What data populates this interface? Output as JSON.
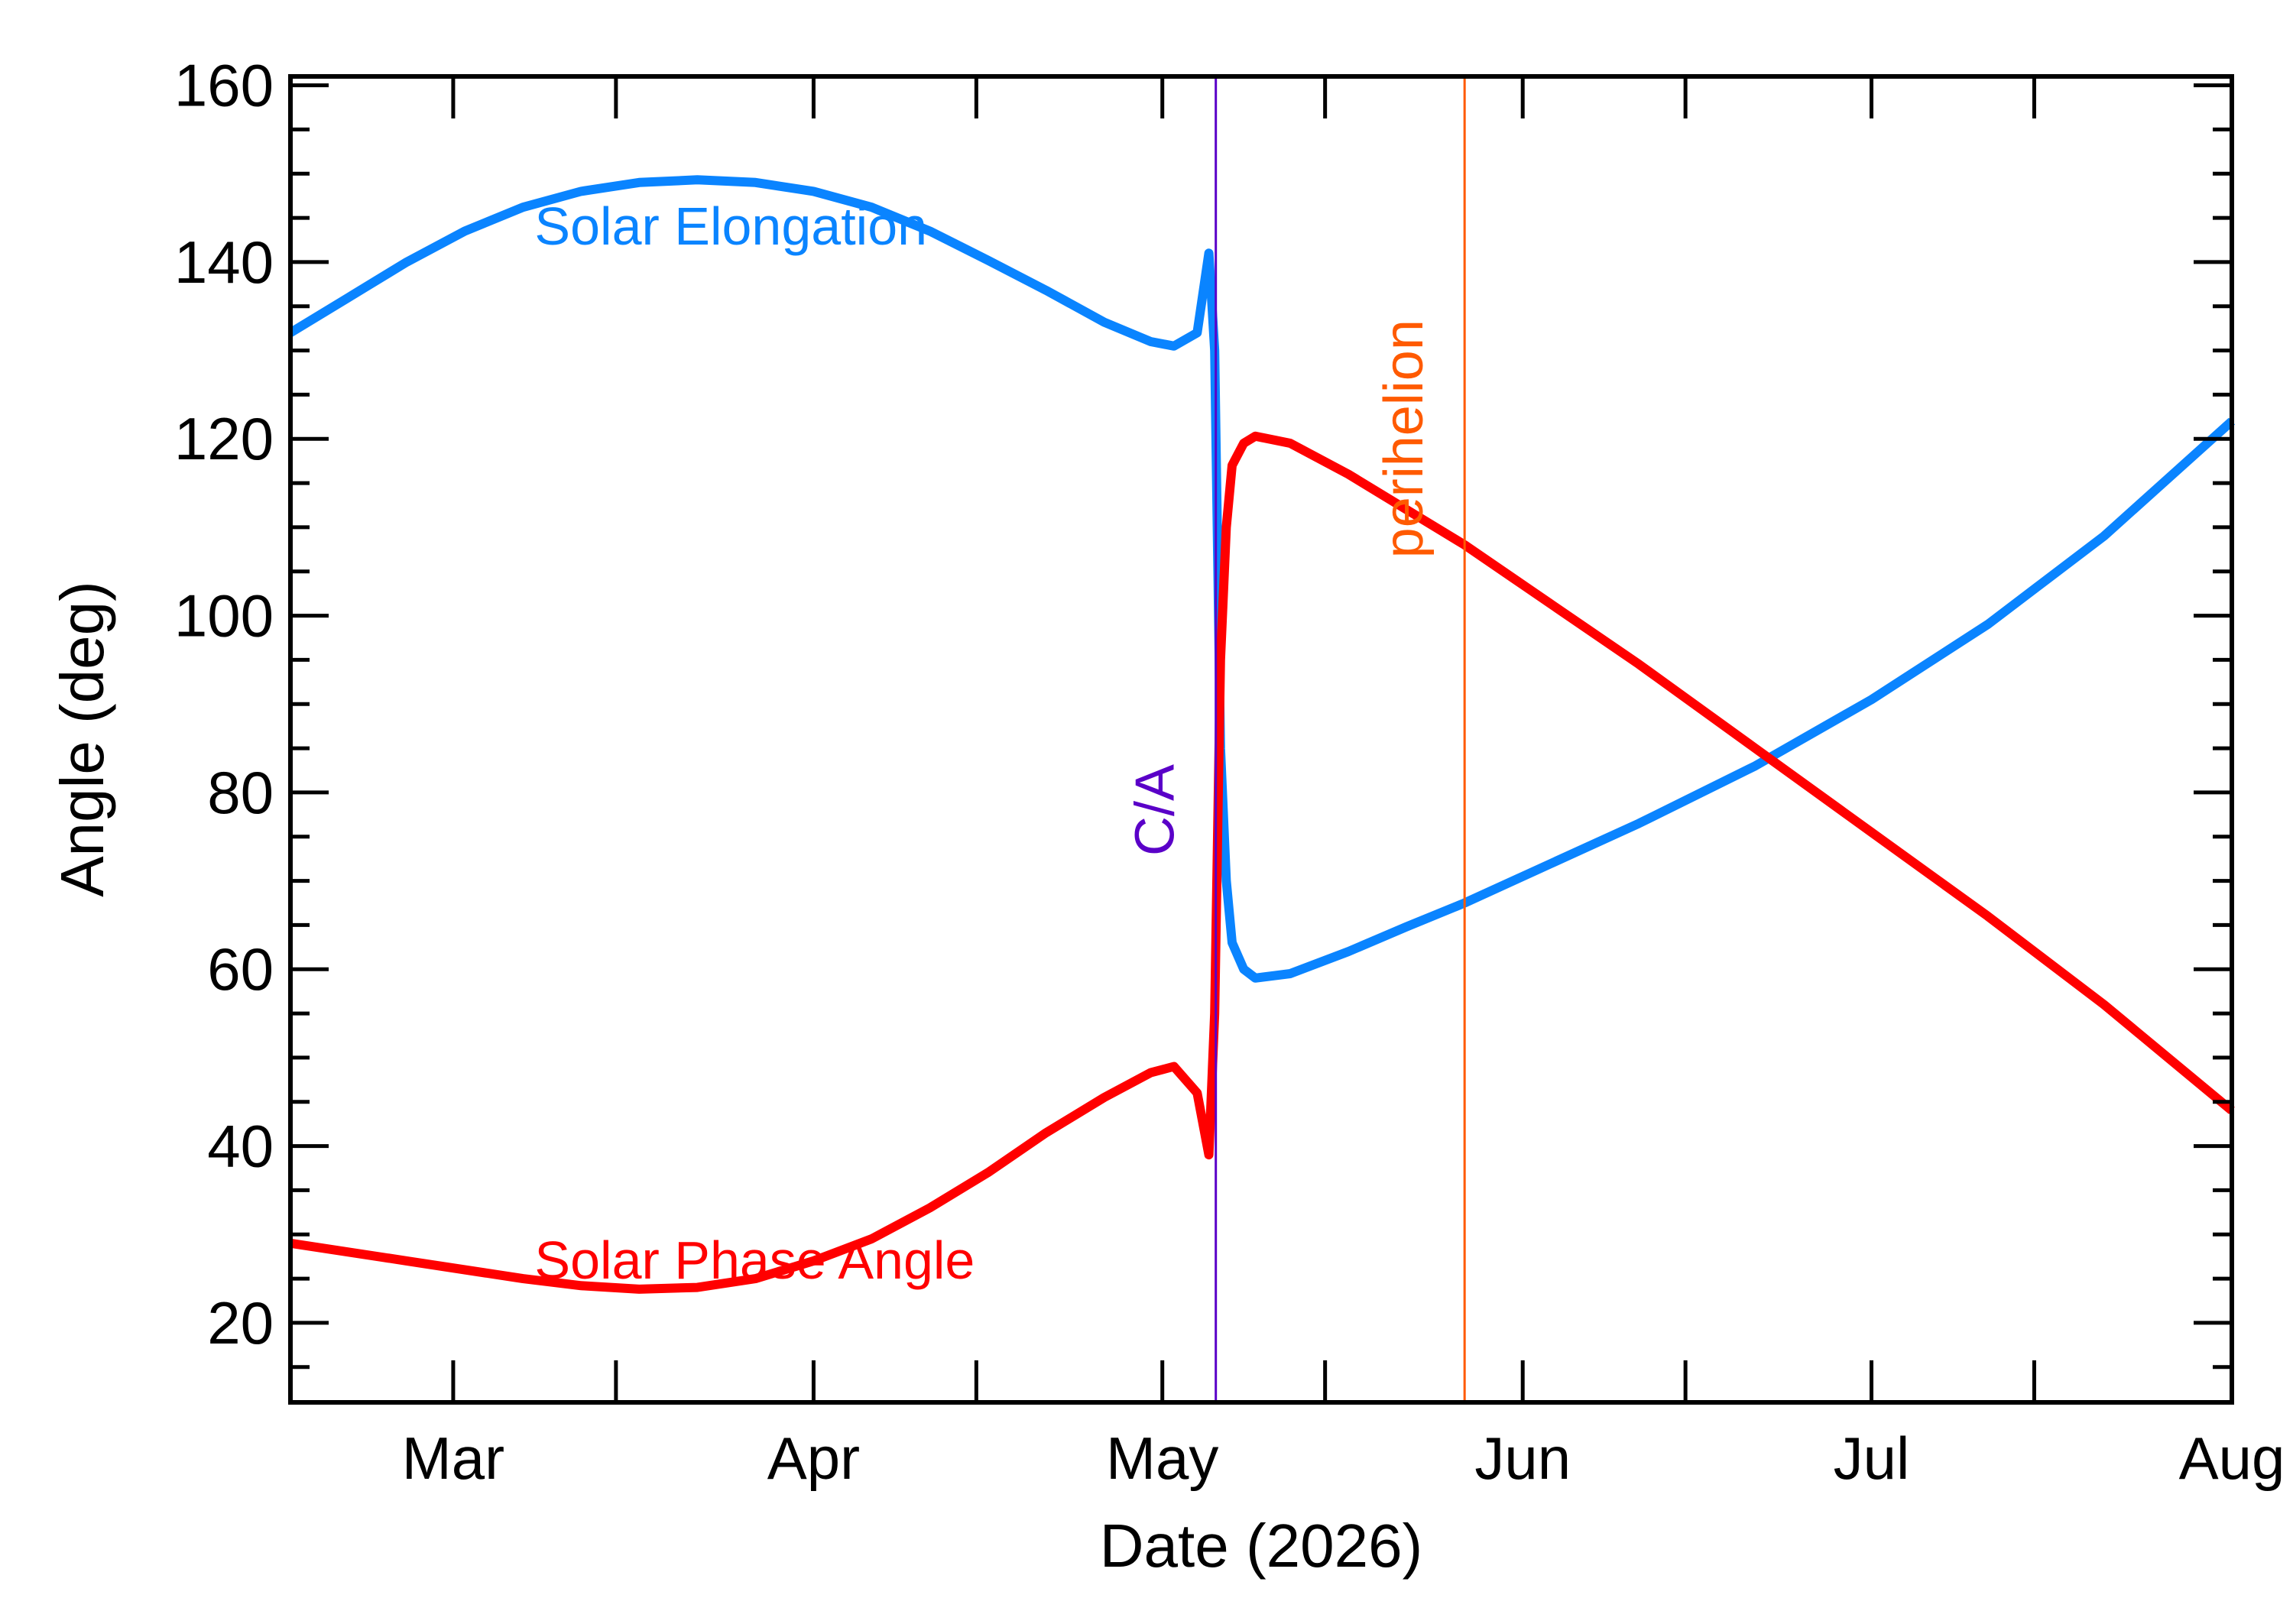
{
  "chart_data": {
    "type": "line",
    "xlabel": "Date (2026)",
    "ylabel": "Angle (deg)",
    "xlim": [
      "2026-02-15",
      "2026-08-01"
    ],
    "ylim": [
      11,
      161
    ],
    "x_tick_labels": [
      {
        "date": "2026-03-01",
        "label": "Mar"
      },
      {
        "date": "2026-04-01",
        "label": "Apr"
      },
      {
        "date": "2026-05-01",
        "label": "May"
      },
      {
        "date": "2026-06-01",
        "label": "Jun"
      },
      {
        "date": "2026-07-01",
        "label": "Jul"
      },
      {
        "date": "2026-08-01",
        "label": "Aug"
      }
    ],
    "y_ticks": [
      20,
      40,
      60,
      80,
      100,
      120,
      140,
      160
    ],
    "series": [
      {
        "name": "Solar Elongation",
        "color": "#0a84ff",
        "points": [
          {
            "x": "2026-02-15",
            "y": 132
          },
          {
            "x": "2026-02-20",
            "y": 136
          },
          {
            "x": "2026-02-25",
            "y": 140
          },
          {
            "x": "2026-03-02",
            "y": 143.5
          },
          {
            "x": "2026-03-07",
            "y": 146.2
          },
          {
            "x": "2026-03-12",
            "y": 148
          },
          {
            "x": "2026-03-17",
            "y": 149
          },
          {
            "x": "2026-03-22",
            "y": 149.3
          },
          {
            "x": "2026-03-27",
            "y": 149
          },
          {
            "x": "2026-04-01",
            "y": 148
          },
          {
            "x": "2026-04-06",
            "y": 146.2
          },
          {
            "x": "2026-04-11",
            "y": 143.5
          },
          {
            "x": "2026-04-16",
            "y": 140.2
          },
          {
            "x": "2026-04-21",
            "y": 136.8
          },
          {
            "x": "2026-04-26",
            "y": 133.2
          },
          {
            "x": "2026-04-30",
            "y": 131
          },
          {
            "x": "2026-05-02",
            "y": 130.5
          },
          {
            "x": "2026-05-04",
            "y": 132
          },
          {
            "x": "2026-05-05",
            "y": 141
          },
          {
            "x": "2026-05-05.5",
            "y": 130
          },
          {
            "x": "2026-05-06",
            "y": 85
          },
          {
            "x": "2026-05-06.5",
            "y": 70
          },
          {
            "x": "2026-05-07",
            "y": 63
          },
          {
            "x": "2026-05-08",
            "y": 60
          },
          {
            "x": "2026-05-09",
            "y": 59
          },
          {
            "x": "2026-05-12",
            "y": 59.5
          },
          {
            "x": "2026-05-17",
            "y": 62
          },
          {
            "x": "2026-05-22",
            "y": 64.8
          },
          {
            "x": "2026-05-27",
            "y": 67.5
          },
          {
            "x": "2026-06-01",
            "y": 70.5
          },
          {
            "x": "2026-06-11",
            "y": 76.5
          },
          {
            "x": "2026-06-21",
            "y": 83
          },
          {
            "x": "2026-07-01",
            "y": 90.5
          },
          {
            "x": "2026-07-11",
            "y": 99
          },
          {
            "x": "2026-07-21",
            "y": 109
          },
          {
            "x": "2026-08-01",
            "y": 122
          }
        ]
      },
      {
        "name": "Solar Phase Angle",
        "color": "#ff0000",
        "points": [
          {
            "x": "2026-02-15",
            "y": 29
          },
          {
            "x": "2026-02-25",
            "y": 27
          },
          {
            "x": "2026-03-07",
            "y": 25
          },
          {
            "x": "2026-03-12",
            "y": 24.2
          },
          {
            "x": "2026-03-17",
            "y": 23.8
          },
          {
            "x": "2026-03-22",
            "y": 24
          },
          {
            "x": "2026-03-27",
            "y": 25
          },
          {
            "x": "2026-04-01",
            "y": 27
          },
          {
            "x": "2026-04-06",
            "y": 29.5
          },
          {
            "x": "2026-04-11",
            "y": 33
          },
          {
            "x": "2026-04-16",
            "y": 37
          },
          {
            "x": "2026-04-21",
            "y": 41.5
          },
          {
            "x": "2026-04-26",
            "y": 45.5
          },
          {
            "x": "2026-04-30",
            "y": 48.3
          },
          {
            "x": "2026-05-02",
            "y": 49
          },
          {
            "x": "2026-05-04",
            "y": 46
          },
          {
            "x": "2026-05-05",
            "y": 39
          },
          {
            "x": "2026-05-05.5",
            "y": 55
          },
          {
            "x": "2026-05-06",
            "y": 95
          },
          {
            "x": "2026-05-06.5",
            "y": 110
          },
          {
            "x": "2026-05-07",
            "y": 117
          },
          {
            "x": "2026-05-08",
            "y": 119.5
          },
          {
            "x": "2026-05-09",
            "y": 120.3
          },
          {
            "x": "2026-05-12",
            "y": 119.5
          },
          {
            "x": "2026-05-17",
            "y": 116
          },
          {
            "x": "2026-05-22",
            "y": 112
          },
          {
            "x": "2026-05-27",
            "y": 108
          },
          {
            "x": "2026-06-01",
            "y": 103.5
          },
          {
            "x": "2026-06-11",
            "y": 94.5
          },
          {
            "x": "2026-06-21",
            "y": 85
          },
          {
            "x": "2026-07-01",
            "y": 75.5
          },
          {
            "x": "2026-07-11",
            "y": 66
          },
          {
            "x": "2026-07-21",
            "y": 56
          },
          {
            "x": "2026-08-01",
            "y": 44
          }
        ]
      }
    ],
    "series_labels": [
      {
        "text": "Solar Elongation",
        "color": "#0a84ff",
        "at": {
          "x": "2026-03-08",
          "y": 142
        }
      },
      {
        "text": "Solar Phase Angle",
        "color": "#ff0000",
        "at": {
          "x": "2026-03-08",
          "y": 25
        }
      }
    ],
    "events": [
      {
        "label": "C/A",
        "date": "2026-05-05.6",
        "color": "#5a00c8",
        "label_y": 78
      },
      {
        "label": "perihelion",
        "date": "2026-05-27",
        "color": "#ff5a00",
        "label_y": 120
      }
    ],
    "grid": false
  }
}
